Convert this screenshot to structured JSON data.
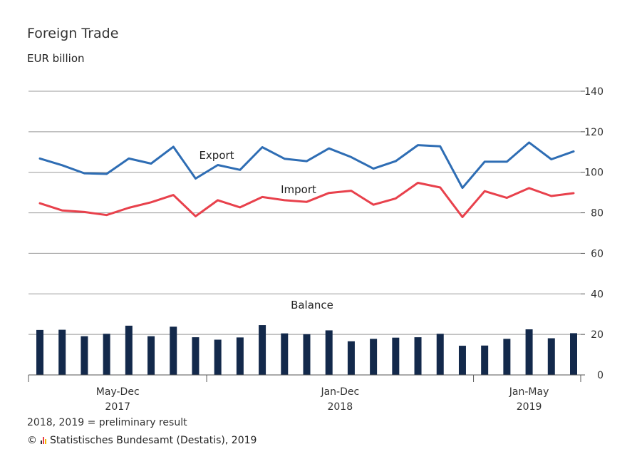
{
  "title": "Foreign Trade",
  "subtitle": "EUR billion",
  "footnote": "2018, 2019 = preliminary result",
  "source": {
    "copyright": "©",
    "text": "Statistisches Bundesamt (Destatis), 2019"
  },
  "colors": {
    "export": "#2e6db4",
    "import": "#e8414c",
    "balance": "#13294b",
    "grid": "#999999",
    "axis": "#555555"
  },
  "chart_data": {
    "type": "line",
    "title": "Foreign Trade",
    "ylabel": "EUR billion",
    "ylim": [
      0,
      140
    ],
    "yticks": [
      0,
      20,
      40,
      60,
      80,
      100,
      120,
      140
    ],
    "grid": true,
    "x": [
      "2017-05",
      "2017-06",
      "2017-07",
      "2017-08",
      "2017-09",
      "2017-10",
      "2017-11",
      "2017-12",
      "2018-01",
      "2018-02",
      "2018-03",
      "2018-04",
      "2018-05",
      "2018-06",
      "2018-07",
      "2018-08",
      "2018-09",
      "2018-10",
      "2018-11",
      "2018-12",
      "2019-01",
      "2019-02",
      "2019-03",
      "2019-04",
      "2019-05"
    ],
    "period_groups": [
      {
        "label": "May-Dec",
        "year": "2017",
        "start": 0,
        "end": 7
      },
      {
        "label": "Jan-Dec",
        "year": "2018",
        "start": 8,
        "end": 19
      },
      {
        "label": "Jan-May",
        "year": "2019",
        "start": 20,
        "end": 24
      }
    ],
    "series": [
      {
        "name": "Export",
        "type": "line",
        "values": [
          106.8,
          103.5,
          99.5,
          99.2,
          106.8,
          104.3,
          112.6,
          96.9,
          103.6,
          101.2,
          112.4,
          106.7,
          105.5,
          111.8,
          107.5,
          101.8,
          105.5,
          113.4,
          112.8,
          92.3,
          105.2,
          105.2,
          114.7,
          106.4,
          110.3
        ]
      },
      {
        "name": "Import",
        "type": "line",
        "values": [
          84.7,
          81.2,
          80.4,
          78.9,
          82.5,
          85.2,
          88.8,
          78.3,
          86.2,
          82.7,
          87.8,
          86.2,
          85.4,
          89.8,
          90.9,
          84.0,
          87.1,
          94.8,
          92.5,
          77.9,
          90.7,
          87.4,
          92.2,
          88.3,
          89.7
        ]
      },
      {
        "name": "Balance",
        "type": "bar",
        "values": [
          22.2,
          22.3,
          19.1,
          20.3,
          24.3,
          19.1,
          23.8,
          18.6,
          17.4,
          18.5,
          24.6,
          20.5,
          20.1,
          22.0,
          16.6,
          17.8,
          18.4,
          18.6,
          20.3,
          14.4,
          14.5,
          17.8,
          22.5,
          18.1,
          20.6
        ]
      }
    ],
    "annotations": [
      {
        "text": "Export",
        "series": "Export"
      },
      {
        "text": "Import",
        "series": "Import"
      },
      {
        "text": "Balance",
        "series": "Balance"
      }
    ]
  }
}
